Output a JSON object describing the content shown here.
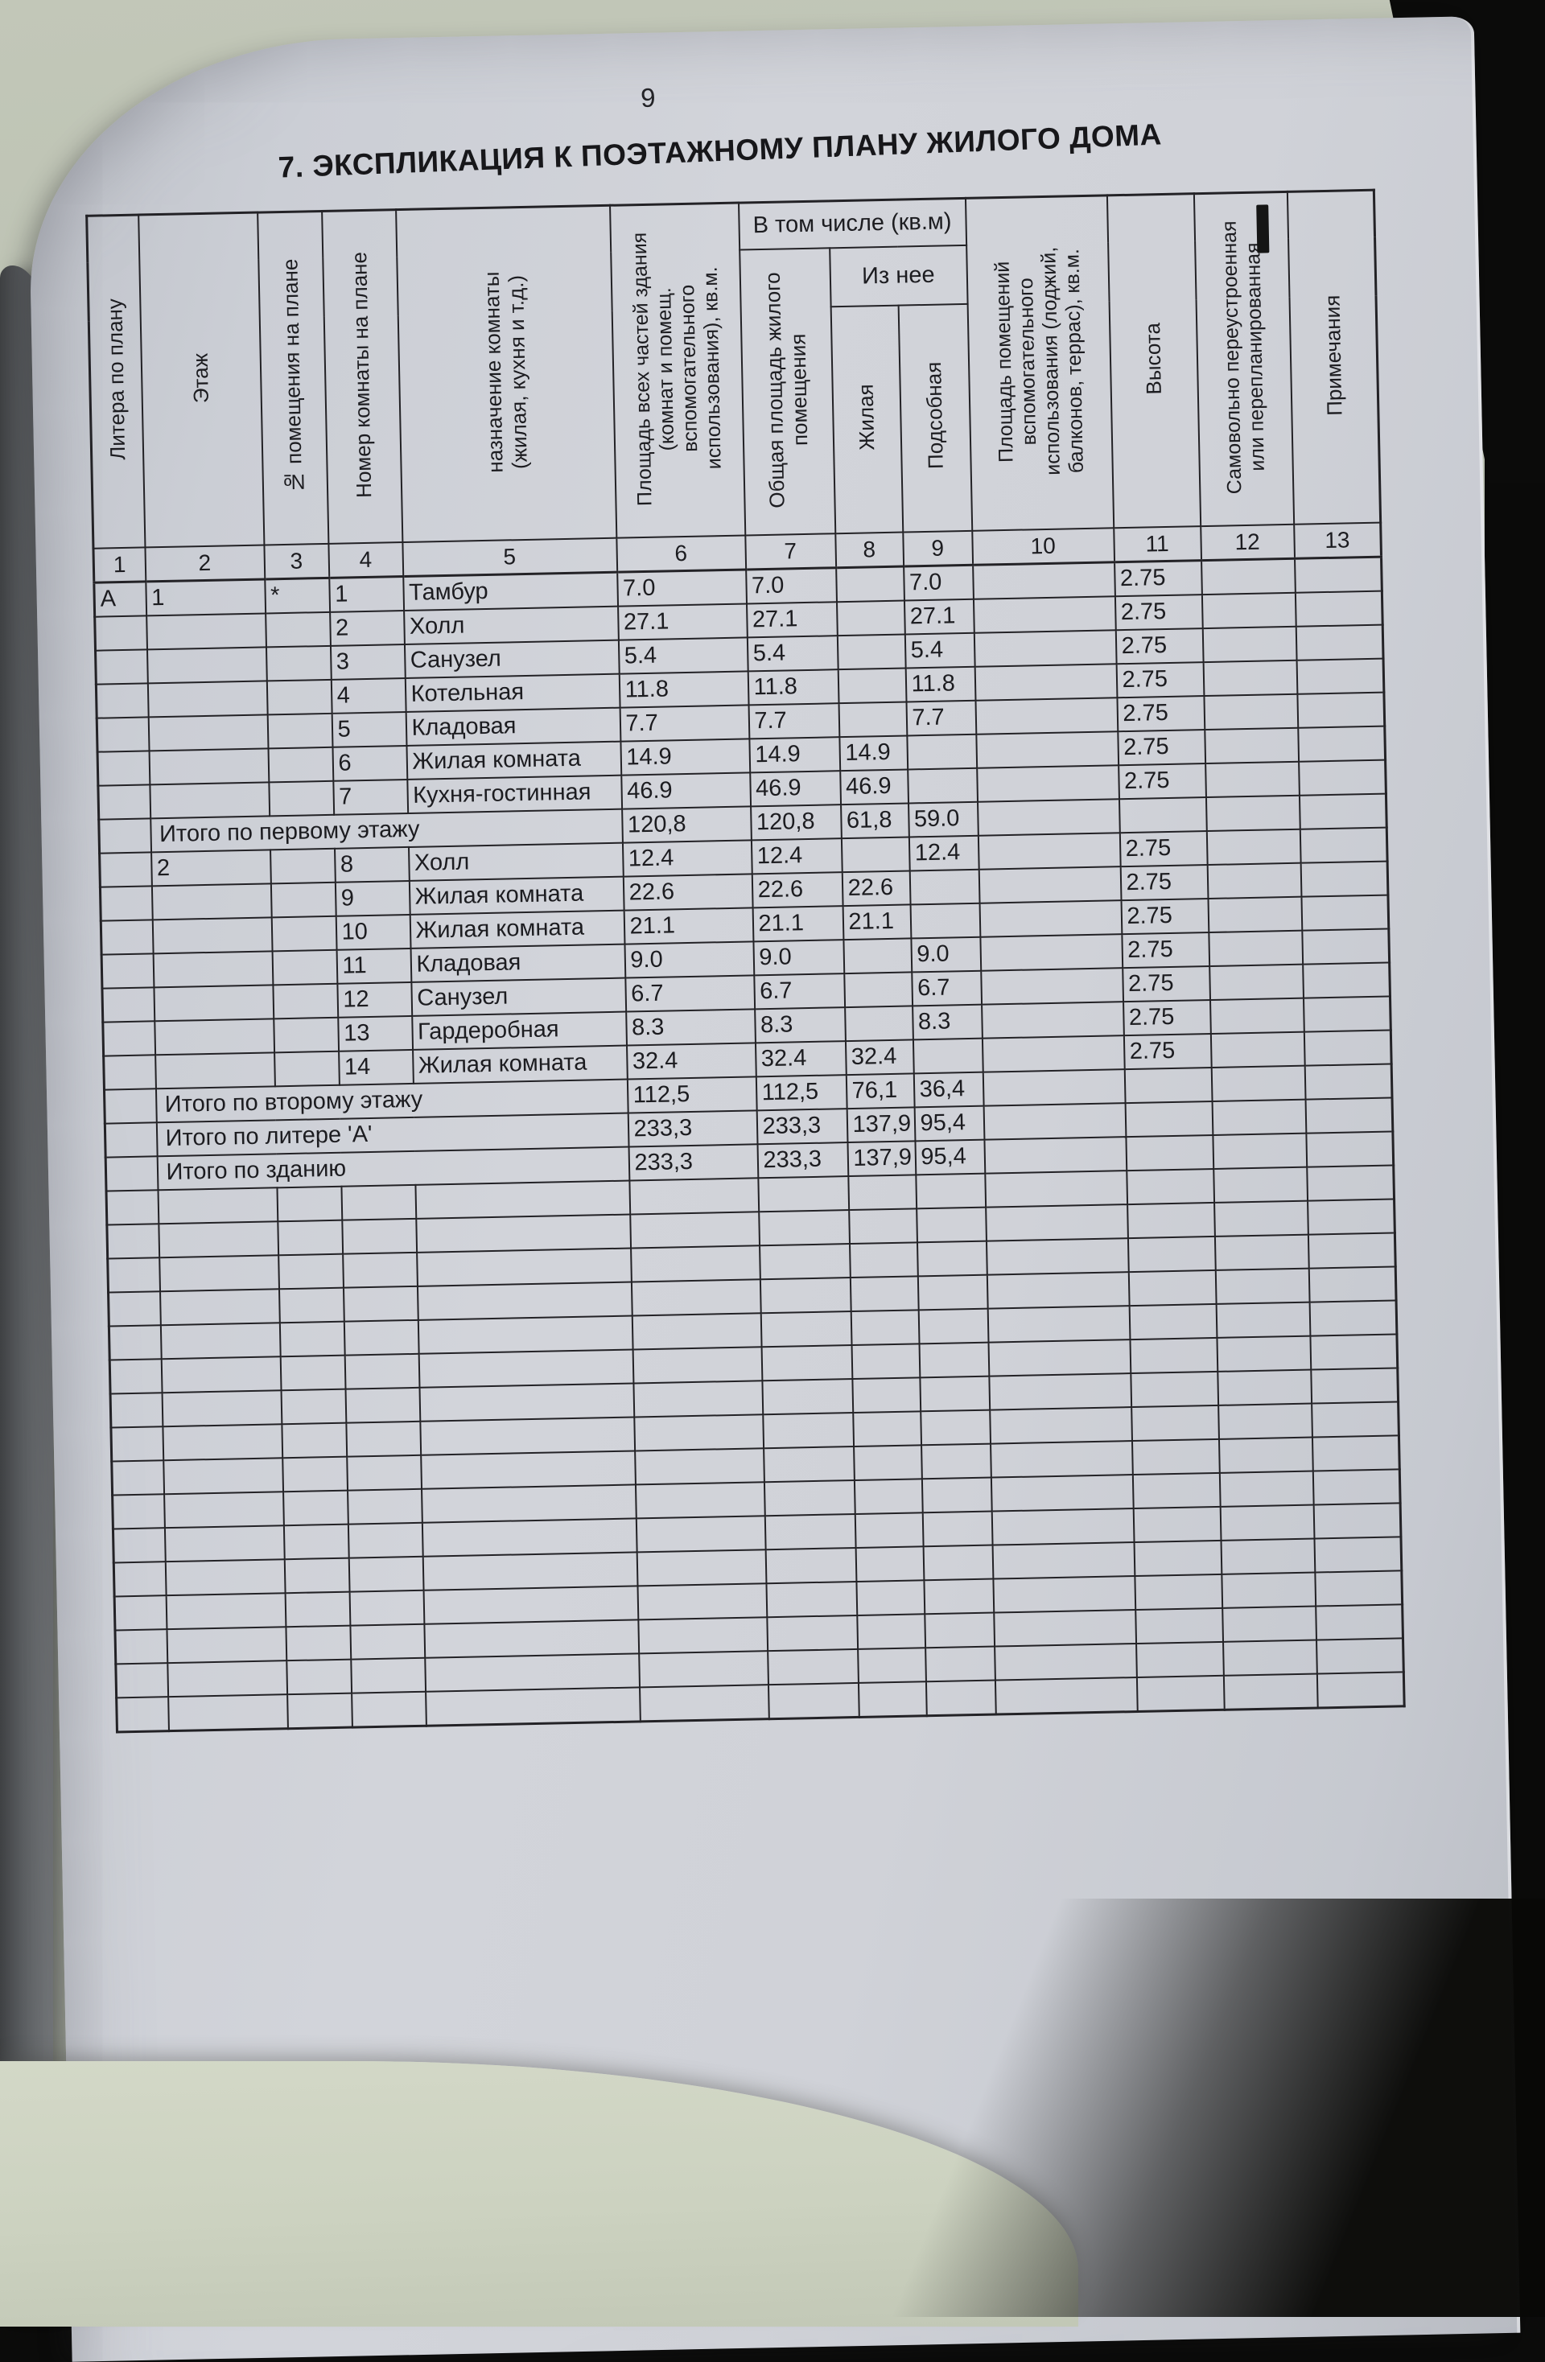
{
  "page": {
    "number": "9",
    "title": "7. ЭКСПЛИКАЦИЯ К ПОЭТАЖНОМУ ПЛАНУ ЖИЛОГО ДОМА"
  },
  "colors": {
    "paper": "#d0d2d8",
    "backdrop_green": "#bcc2b3",
    "spine_gray": "#585b5e",
    "background_black": "#0a0a09",
    "line": "#232226"
  },
  "table": {
    "group_headers": {
      "v_tom_chisle": "В том числе (кв.м)",
      "iz_nee": "Из нее"
    },
    "columns": [
      {
        "num": "1",
        "label": "Литера по плану"
      },
      {
        "num": "2",
        "label": "Этаж"
      },
      {
        "num": "3",
        "label": "№ помещения на плане"
      },
      {
        "num": "4",
        "label": "Номер комнаты на плане"
      },
      {
        "num": "5",
        "label": "назначение комнаты (жилая, кухня и т.д.)"
      },
      {
        "num": "6",
        "label": "Площадь всех частей здания (комнат и помещ. вспомогательного использования), кв.м."
      },
      {
        "num": "7",
        "label": "Общая площадь жилого помещения"
      },
      {
        "num": "8",
        "label": "Жилая"
      },
      {
        "num": "9",
        "label": "Подсобная"
      },
      {
        "num": "10",
        "label": "Площадь помещений вспомогательного использования (лоджий, балконов, террас), кв.м."
      },
      {
        "num": "11",
        "label": "Высота"
      },
      {
        "num": "12",
        "label": "Самовольно переустроенная или перепланированная"
      },
      {
        "num": "13",
        "label": "Примечания"
      }
    ],
    "rows": [
      {
        "type": "room",
        "cells": [
          "А",
          "1",
          "*",
          "1",
          "Тамбур",
          "7.0",
          "7.0",
          "",
          "7.0",
          "",
          "2.75",
          "",
          ""
        ]
      },
      {
        "type": "room",
        "cells": [
          "",
          "",
          "",
          "2",
          "Холл",
          "27.1",
          "27.1",
          "",
          "27.1",
          "",
          "2.75",
          "",
          ""
        ]
      },
      {
        "type": "room",
        "cells": [
          "",
          "",
          "",
          "3",
          "Санузел",
          "5.4",
          "5.4",
          "",
          "5.4",
          "",
          "2.75",
          "",
          ""
        ]
      },
      {
        "type": "room",
        "cells": [
          "",
          "",
          "",
          "4",
          "Котельная",
          "11.8",
          "11.8",
          "",
          "11.8",
          "",
          "2.75",
          "",
          ""
        ]
      },
      {
        "type": "room",
        "cells": [
          "",
          "",
          "",
          "5",
          "Кладовая",
          "7.7",
          "7.7",
          "",
          "7.7",
          "",
          "2.75",
          "",
          ""
        ]
      },
      {
        "type": "room",
        "cells": [
          "",
          "",
          "",
          "6",
          "Жилая комната",
          "14.9",
          "14.9",
          "14.9",
          "",
          "",
          "2.75",
          "",
          ""
        ]
      },
      {
        "type": "room",
        "cells": [
          "",
          "",
          "",
          "7",
          "Кухня-гостинная",
          "46.9",
          "46.9",
          "46.9",
          "",
          "",
          "2.75",
          "",
          ""
        ]
      },
      {
        "type": "total",
        "label": "Итого по первому этажу",
        "values": [
          "120,8",
          "120,8",
          "61,8",
          "59.0"
        ]
      },
      {
        "type": "room",
        "cells": [
          "",
          "2",
          "",
          "8",
          "Холл",
          "12.4",
          "12.4",
          "",
          "12.4",
          "",
          "2.75",
          "",
          ""
        ]
      },
      {
        "type": "room",
        "cells": [
          "",
          "",
          "",
          "9",
          "Жилая комната",
          "22.6",
          "22.6",
          "22.6",
          "",
          "",
          "2.75",
          "",
          ""
        ]
      },
      {
        "type": "room",
        "cells": [
          "",
          "",
          "",
          "10",
          "Жилая комната",
          "21.1",
          "21.1",
          "21.1",
          "",
          "",
          "2.75",
          "",
          ""
        ]
      },
      {
        "type": "room",
        "cells": [
          "",
          "",
          "",
          "11",
          "Кладовая",
          "9.0",
          "9.0",
          "",
          "9.0",
          "",
          "2.75",
          "",
          ""
        ]
      },
      {
        "type": "room",
        "cells": [
          "",
          "",
          "",
          "12",
          "Санузел",
          "6.7",
          "6.7",
          "",
          "6.7",
          "",
          "2.75",
          "",
          ""
        ]
      },
      {
        "type": "room",
        "cells": [
          "",
          "",
          "",
          "13",
          "Гардеробная",
          "8.3",
          "8.3",
          "",
          "8.3",
          "",
          "2.75",
          "",
          ""
        ]
      },
      {
        "type": "room",
        "cells": [
          "",
          "",
          "",
          "14",
          "Жилая комната",
          "32.4",
          "32.4",
          "32.4",
          "",
          "",
          "2.75",
          "",
          ""
        ]
      },
      {
        "type": "total",
        "label": "Итого по второму этажу",
        "values": [
          "112,5",
          "112,5",
          "76,1",
          "36,4"
        ]
      },
      {
        "type": "total",
        "label": "Итого по литере 'А'",
        "values": [
          "233,3",
          "233,3",
          "137,9",
          "95,4"
        ]
      },
      {
        "type": "total",
        "label": "Итого по зданию",
        "values": [
          "233,3",
          "233,3",
          "137,9",
          "95,4"
        ]
      }
    ],
    "empty_rows": 16
  }
}
